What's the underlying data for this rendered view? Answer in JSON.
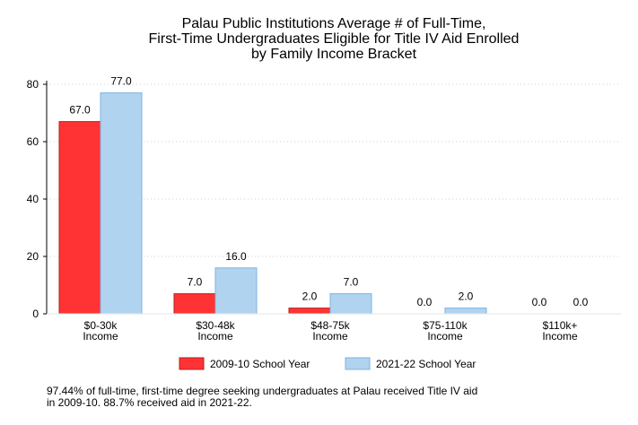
{
  "chart_data": {
    "type": "bar",
    "title": [
      "Palau Public Institutions Average # of Full-Time,",
      "First-Time Undergraduates Eligible for Title IV Aid Enrolled",
      "by Family Income Bracket"
    ],
    "categories": [
      [
        "$0-30k",
        "Income"
      ],
      [
        "$30-48k",
        "Income"
      ],
      [
        "$48-75k",
        "Income"
      ],
      [
        "$75-110k",
        "Income"
      ],
      [
        "$110k+",
        "Income"
      ]
    ],
    "series": [
      {
        "name": "2009-10 School Year",
        "color": "#ff3333",
        "stroke": "#b22222",
        "values": [
          67.0,
          7.0,
          2.0,
          0.0,
          0.0
        ],
        "labels": [
          "67.0",
          "7.0",
          "2.0",
          "0.0",
          "0.0"
        ]
      },
      {
        "name": "2021-22 School Year",
        "color": "#b0d4f0",
        "stroke": "#7fb2dd",
        "values": [
          77.0,
          16.0,
          7.0,
          2.0,
          0.0
        ],
        "labels": [
          "77.0",
          "16.0",
          "7.0",
          "2.0",
          "0.0"
        ]
      }
    ],
    "ylim": [
      0,
      80
    ],
    "yticks": [
      0,
      20,
      40,
      60,
      80
    ],
    "grid": true,
    "legend_position": "bottom",
    "xlabel": "",
    "ylabel": ""
  },
  "note": [
    "97.44% of full-time, first-time degree seeking undergraduates at Palau received Title IV aid",
    "in 2009-10. 88.7% received aid in 2021-22."
  ]
}
